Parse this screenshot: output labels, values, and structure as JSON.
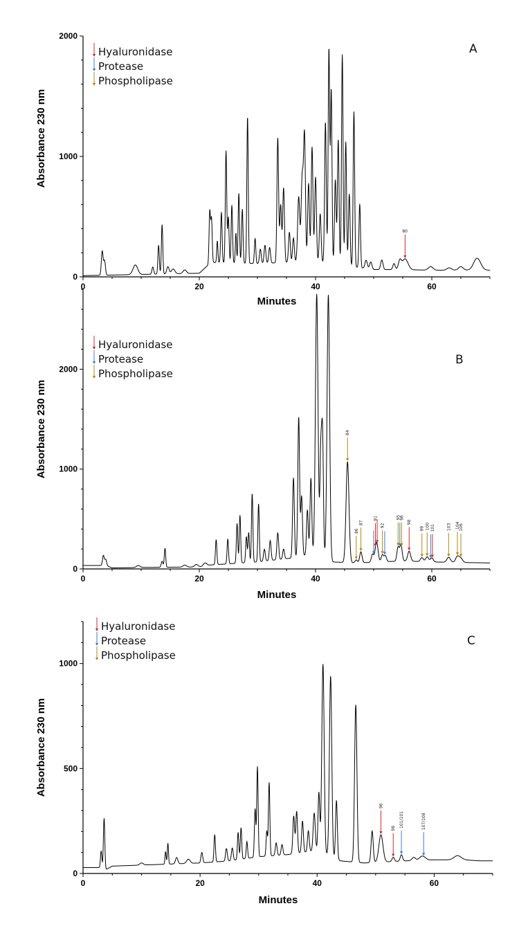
{
  "colors": {
    "hyaluronidase": "#d62728",
    "protease": "#3a7bd5",
    "phospholipase": "#b8860b",
    "trace": "#000000"
  },
  "chart_data": [
    {
      "type": "line",
      "panel": "A",
      "xlabel": "Minutes",
      "ylabel": "Absorbance 230 nm",
      "xlim": [
        0,
        70
      ],
      "ylim": [
        0,
        2000
      ],
      "xticks": [
        0,
        20,
        40,
        60
      ],
      "yticks": [
        0,
        1000,
        2000
      ],
      "legend": [
        {
          "label": "Hyaluronidase",
          "kind": "hyaluronidase"
        },
        {
          "label": "Protease",
          "kind": "protease"
        },
        {
          "label": "Phospholipase",
          "kind": "phospholipase"
        }
      ],
      "baseline": [
        [
          0,
          10
        ],
        [
          5,
          15
        ],
        [
          10,
          20
        ],
        [
          20,
          30
        ],
        [
          22,
          120
        ],
        [
          30,
          110
        ],
        [
          40,
          130
        ],
        [
          47,
          80
        ],
        [
          50,
          60
        ],
        [
          55,
          60
        ],
        [
          60,
          55
        ],
        [
          65,
          55
        ],
        [
          70,
          55
        ]
      ],
      "peaks": [
        {
          "x": 3.3,
          "h": 200,
          "w": 0.15
        },
        {
          "x": 3.7,
          "h": 120,
          "w": 0.15
        },
        {
          "x": 9.0,
          "h": 80,
          "w": 0.4
        },
        {
          "x": 12.0,
          "h": 60,
          "w": 0.15
        },
        {
          "x": 13.0,
          "h": 240,
          "w": 0.12
        },
        {
          "x": 13.6,
          "h": 410,
          "w": 0.12
        },
        {
          "x": 14.6,
          "h": 60,
          "w": 0.2
        },
        {
          "x": 15.5,
          "h": 40,
          "w": 0.3
        },
        {
          "x": 17.5,
          "h": 30,
          "w": 0.3
        },
        {
          "x": 21.8,
          "h": 430,
          "w": 0.12
        },
        {
          "x": 22.1,
          "h": 360,
          "w": 0.12
        },
        {
          "x": 23.1,
          "h": 180,
          "w": 0.1
        },
        {
          "x": 23.8,
          "h": 420,
          "w": 0.12
        },
        {
          "x": 24.6,
          "h": 930,
          "w": 0.12
        },
        {
          "x": 25.0,
          "h": 380,
          "w": 0.12
        },
        {
          "x": 25.6,
          "h": 480,
          "w": 0.12
        },
        {
          "x": 26.3,
          "h": 250,
          "w": 0.1
        },
        {
          "x": 26.8,
          "h": 580,
          "w": 0.12
        },
        {
          "x": 27.4,
          "h": 450,
          "w": 0.12
        },
        {
          "x": 28.3,
          "h": 1220,
          "w": 0.12
        },
        {
          "x": 29.6,
          "h": 210,
          "w": 0.12
        },
        {
          "x": 30.5,
          "h": 120,
          "w": 0.15
        },
        {
          "x": 31.3,
          "h": 150,
          "w": 0.15
        },
        {
          "x": 32.1,
          "h": 130,
          "w": 0.15
        },
        {
          "x": 33.5,
          "h": 1040,
          "w": 0.14
        },
        {
          "x": 34.0,
          "h": 480,
          "w": 0.15
        },
        {
          "x": 34.5,
          "h": 620,
          "w": 0.15
        },
        {
          "x": 35.5,
          "h": 250,
          "w": 0.15
        },
        {
          "x": 36.2,
          "h": 200,
          "w": 0.15
        },
        {
          "x": 37.1,
          "h": 540,
          "w": 0.18
        },
        {
          "x": 37.7,
          "h": 700,
          "w": 0.18
        },
        {
          "x": 38.1,
          "h": 1030,
          "w": 0.16
        },
        {
          "x": 38.8,
          "h": 650,
          "w": 0.15
        },
        {
          "x": 39.4,
          "h": 950,
          "w": 0.15
        },
        {
          "x": 40.0,
          "h": 700,
          "w": 0.15
        },
        {
          "x": 40.8,
          "h": 400,
          "w": 0.15
        },
        {
          "x": 41.7,
          "h": 1170,
          "w": 0.14
        },
        {
          "x": 42.3,
          "h": 1780,
          "w": 0.13
        },
        {
          "x": 42.7,
          "h": 1440,
          "w": 0.13
        },
        {
          "x": 43.4,
          "h": 700,
          "w": 0.14
        },
        {
          "x": 43.9,
          "h": 1040,
          "w": 0.14
        },
        {
          "x": 44.6,
          "h": 1750,
          "w": 0.13
        },
        {
          "x": 45.2,
          "h": 1030,
          "w": 0.13
        },
        {
          "x": 45.8,
          "h": 600,
          "w": 0.14
        },
        {
          "x": 46.6,
          "h": 1290,
          "w": 0.13
        },
        {
          "x": 47.6,
          "h": 530,
          "w": 0.13
        },
        {
          "x": 48.7,
          "h": 70,
          "w": 0.2
        },
        {
          "x": 49.5,
          "h": 60,
          "w": 0.2
        },
        {
          "x": 51.4,
          "h": 80,
          "w": 0.2
        },
        {
          "x": 53.5,
          "h": 50,
          "w": 0.2
        },
        {
          "x": 54.5,
          "h": 70,
          "w": 0.25
        },
        {
          "x": 55.4,
          "h": 90,
          "w": 0.5
        },
        {
          "x": 59.8,
          "h": 30,
          "w": 0.4
        },
        {
          "x": 63.0,
          "h": 20,
          "w": 0.4
        },
        {
          "x": 65.0,
          "h": 30,
          "w": 0.4
        },
        {
          "x": 67.8,
          "h": 100,
          "w": 0.6
        }
      ],
      "markers": [
        {
          "x": 55.4,
          "kind": "hyaluronidase",
          "label": "80"
        }
      ]
    },
    {
      "type": "line",
      "panel": "B",
      "xlabel": "Minutes",
      "ylabel": "Absorbance 230 nm",
      "xlim": [
        0,
        70
      ],
      "ylim": [
        0,
        2800
      ],
      "xticks": [
        0,
        20,
        40,
        60
      ],
      "yticks": [
        0,
        1000,
        2000
      ],
      "legend": [
        {
          "label": "Hyaluronidase",
          "kind": "hyaluronidase"
        },
        {
          "label": "Protease",
          "kind": "protease"
        },
        {
          "label": "Phospholipase",
          "kind": "phospholipase"
        }
      ],
      "baseline": [
        [
          0,
          35
        ],
        [
          4,
          35
        ],
        [
          5,
          10
        ],
        [
          10,
          15
        ],
        [
          20,
          20
        ],
        [
          22,
          40
        ],
        [
          30,
          70
        ],
        [
          36,
          110
        ],
        [
          40,
          160
        ],
        [
          43,
          70
        ],
        [
          47,
          60
        ],
        [
          55,
          80
        ],
        [
          60,
          70
        ],
        [
          70,
          60
        ]
      ],
      "peaks": [
        {
          "x": 3.5,
          "h": 100,
          "w": 0.15
        },
        {
          "x": 3.9,
          "h": 60,
          "w": 0.15
        },
        {
          "x": 9.5,
          "h": 20,
          "w": 0.3
        },
        {
          "x": 13.6,
          "h": 60,
          "w": 0.15
        },
        {
          "x": 14.1,
          "h": 190,
          "w": 0.12
        },
        {
          "x": 17.5,
          "h": 20,
          "w": 0.3
        },
        {
          "x": 19.5,
          "h": 25,
          "w": 0.3
        },
        {
          "x": 21.0,
          "h": 30,
          "w": 0.3
        },
        {
          "x": 22.9,
          "h": 250,
          "w": 0.12
        },
        {
          "x": 24.9,
          "h": 250,
          "w": 0.12
        },
        {
          "x": 26.5,
          "h": 400,
          "w": 0.12
        },
        {
          "x": 27.0,
          "h": 480,
          "w": 0.12
        },
        {
          "x": 28.1,
          "h": 260,
          "w": 0.12
        },
        {
          "x": 28.5,
          "h": 300,
          "w": 0.12
        },
        {
          "x": 29.1,
          "h": 690,
          "w": 0.12
        },
        {
          "x": 30.2,
          "h": 580,
          "w": 0.12
        },
        {
          "x": 31.2,
          "h": 120,
          "w": 0.15
        },
        {
          "x": 32.2,
          "h": 200,
          "w": 0.15
        },
        {
          "x": 33.5,
          "h": 270,
          "w": 0.15
        },
        {
          "x": 34.5,
          "h": 100,
          "w": 0.15
        },
        {
          "x": 36.2,
          "h": 800,
          "w": 0.15
        },
        {
          "x": 37.1,
          "h": 1400,
          "w": 0.15
        },
        {
          "x": 37.6,
          "h": 600,
          "w": 0.15
        },
        {
          "x": 38.6,
          "h": 450,
          "w": 0.15
        },
        {
          "x": 39.2,
          "h": 760,
          "w": 0.15
        },
        {
          "x": 40.2,
          "h": 2600,
          "w": 0.22
        },
        {
          "x": 40.9,
          "h": 1000,
          "w": 0.15
        },
        {
          "x": 41.2,
          "h": 1200,
          "w": 0.15
        },
        {
          "x": 42.2,
          "h": 2650,
          "w": 0.22
        },
        {
          "x": 45.5,
          "h": 1010,
          "w": 0.25
        },
        {
          "x": 47.0,
          "h": 30,
          "w": 0.2
        },
        {
          "x": 47.8,
          "h": 110,
          "w": 0.2
        },
        {
          "x": 49.8,
          "h": 80,
          "w": 0.2
        },
        {
          "x": 50.5,
          "h": 200,
          "w": 0.25
        },
        {
          "x": 51.5,
          "h": 70,
          "w": 0.2
        },
        {
          "x": 52.0,
          "h": 60,
          "w": 0.2
        },
        {
          "x": 54.2,
          "h": 140,
          "w": 0.2
        },
        {
          "x": 54.7,
          "h": 160,
          "w": 0.2
        },
        {
          "x": 56.1,
          "h": 100,
          "w": 0.25
        },
        {
          "x": 58.3,
          "h": 40,
          "w": 0.25
        },
        {
          "x": 59.2,
          "h": 50,
          "w": 0.25
        },
        {
          "x": 60.0,
          "h": 40,
          "w": 0.25
        },
        {
          "x": 62.9,
          "h": 50,
          "w": 0.3
        },
        {
          "x": 64.4,
          "h": 60,
          "w": 0.3
        },
        {
          "x": 65.0,
          "h": 40,
          "w": 0.3
        }
      ],
      "markers": [
        {
          "x": 45.5,
          "kind": "phospholipase",
          "label": "84"
        },
        {
          "x": 47.0,
          "kind": "phospholipase",
          "label": "86"
        },
        {
          "x": 47.8,
          "kind": "phospholipase",
          "label": "87"
        },
        {
          "x": 50.0,
          "kind": "protease",
          "label": ""
        },
        {
          "x": 50.3,
          "kind": "hyaluronidase",
          "label": "91"
        },
        {
          "x": 50.6,
          "kind": "hyaluronidase",
          "label": ""
        },
        {
          "x": 51.5,
          "kind": "phospholipase",
          "label": "92"
        },
        {
          "x": 51.9,
          "kind": "protease",
          "label": ""
        },
        {
          "x": 54.2,
          "kind": "phospholipase",
          "label": "95"
        },
        {
          "x": 54.5,
          "kind": "protease",
          "label": ""
        },
        {
          "x": 54.8,
          "kind": "phospholipase",
          "label": "96"
        },
        {
          "x": 56.1,
          "kind": "hyaluronidase",
          "label": "98"
        },
        {
          "x": 58.3,
          "kind": "phospholipase",
          "label": "99"
        },
        {
          "x": 59.2,
          "kind": "phospholipase",
          "label": "100"
        },
        {
          "x": 59.8,
          "kind": "protease",
          "label": ""
        },
        {
          "x": 60.1,
          "kind": "hyaluronidase",
          "label": "101"
        },
        {
          "x": 62.9,
          "kind": "phospholipase",
          "label": "103"
        },
        {
          "x": 64.4,
          "kind": "phospholipase",
          "label": "104"
        },
        {
          "x": 65.0,
          "kind": "phospholipase",
          "label": "106"
        }
      ]
    },
    {
      "type": "line",
      "panel": "C",
      "xlabel": "Minutes",
      "ylabel": "Absorbance 230 nm",
      "xlim": [
        0,
        70
      ],
      "ylim": [
        0,
        1200
      ],
      "xticks": [
        0,
        20,
        40,
        60
      ],
      "yticks": [
        0,
        500,
        1000
      ],
      "legend": [
        {
          "label": "Hyaluronidase",
          "kind": "hyaluronidase"
        },
        {
          "label": "Protease",
          "kind": "protease"
        },
        {
          "label": "Phospholipase",
          "kind": "phospholipase"
        }
      ],
      "baseline": [
        [
          0,
          28
        ],
        [
          3,
          28
        ],
        [
          4,
          20
        ],
        [
          5,
          35
        ],
        [
          10,
          40
        ],
        [
          20,
          50
        ],
        [
          25,
          60
        ],
        [
          30,
          80
        ],
        [
          35,
          90
        ],
        [
          40,
          110
        ],
        [
          44,
          60
        ],
        [
          48,
          50
        ],
        [
          55,
          60
        ],
        [
          60,
          65
        ],
        [
          65,
          65
        ],
        [
          68,
          60
        ]
      ],
      "peaks": [
        {
          "x": 3.1,
          "h": 80,
          "w": 0.12
        },
        {
          "x": 3.6,
          "h": 240,
          "w": 0.12
        },
        {
          "x": 10.0,
          "h": 10,
          "w": 0.3
        },
        {
          "x": 14.1,
          "h": 60,
          "w": 0.1
        },
        {
          "x": 14.5,
          "h": 100,
          "w": 0.1
        },
        {
          "x": 16.0,
          "h": 30,
          "w": 0.2
        },
        {
          "x": 18.0,
          "h": 20,
          "w": 0.3
        },
        {
          "x": 20.3,
          "h": 50,
          "w": 0.15
        },
        {
          "x": 22.5,
          "h": 130,
          "w": 0.12
        },
        {
          "x": 24.5,
          "h": 60,
          "w": 0.15
        },
        {
          "x": 25.5,
          "h": 60,
          "w": 0.15
        },
        {
          "x": 26.5,
          "h": 130,
          "w": 0.12
        },
        {
          "x": 27.0,
          "h": 150,
          "w": 0.12
        },
        {
          "x": 28.0,
          "h": 80,
          "w": 0.12
        },
        {
          "x": 29.4,
          "h": 230,
          "w": 0.12
        },
        {
          "x": 29.8,
          "h": 430,
          "w": 0.12
        },
        {
          "x": 31.4,
          "h": 120,
          "w": 0.12
        },
        {
          "x": 31.8,
          "h": 350,
          "w": 0.12
        },
        {
          "x": 33.0,
          "h": 60,
          "w": 0.15
        },
        {
          "x": 34.0,
          "h": 50,
          "w": 0.15
        },
        {
          "x": 36.0,
          "h": 180,
          "w": 0.15
        },
        {
          "x": 36.5,
          "h": 200,
          "w": 0.15
        },
        {
          "x": 37.5,
          "h": 150,
          "w": 0.15
        },
        {
          "x": 38.5,
          "h": 100,
          "w": 0.15
        },
        {
          "x": 39.5,
          "h": 180,
          "w": 0.18
        },
        {
          "x": 40.3,
          "h": 280,
          "w": 0.15
        },
        {
          "x": 41.0,
          "h": 900,
          "w": 0.2
        },
        {
          "x": 42.3,
          "h": 860,
          "w": 0.2
        },
        {
          "x": 43.3,
          "h": 280,
          "w": 0.15
        },
        {
          "x": 46.6,
          "h": 750,
          "w": 0.2
        },
        {
          "x": 49.4,
          "h": 150,
          "w": 0.18
        },
        {
          "x": 50.9,
          "h": 130,
          "w": 0.35
        },
        {
          "x": 53.0,
          "h": 20,
          "w": 0.2
        },
        {
          "x": 54.4,
          "h": 30,
          "w": 0.2
        },
        {
          "x": 56.5,
          "h": 15,
          "w": 0.3
        },
        {
          "x": 58.0,
          "h": 20,
          "w": 0.5
        },
        {
          "x": 64.0,
          "h": 20,
          "w": 0.6
        }
      ],
      "markers": [
        {
          "x": 50.9,
          "kind": "hyaluronidase",
          "label": "96"
        },
        {
          "x": 53.0,
          "kind": "hyaluronidase",
          "label": "98"
        },
        {
          "x": 54.4,
          "kind": "protease",
          "label": "101/101"
        },
        {
          "x": 58.2,
          "kind": "protease",
          "label": "107/108"
        }
      ]
    }
  ]
}
